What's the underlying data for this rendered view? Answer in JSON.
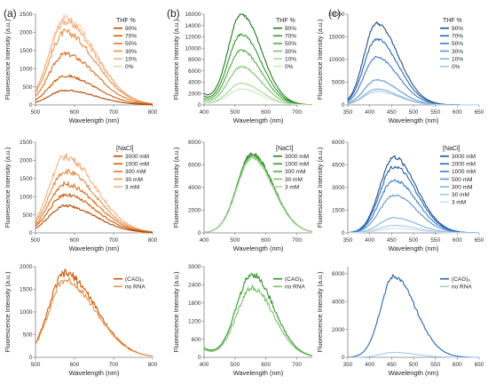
{
  "panel_labels": [
    "(a)",
    "(b)",
    "(c)"
  ],
  "colors": {
    "orange": [
      "#b34700",
      "#cc5a0a",
      "#de7428",
      "#ea934f",
      "#f2b283",
      "#f7cfb2"
    ],
    "green": [
      "#1e7a1e",
      "#33942e",
      "#53ab45",
      "#7ac06a",
      "#a5d697",
      "#cbe8c0"
    ],
    "blue": [
      "#1f4e8c",
      "#2a65ab",
      "#3a7bc4",
      "#5a95d2",
      "#82b1df",
      "#aac9e9",
      "#cddff2"
    ],
    "axis": "#7f7f7f",
    "text": "#222222"
  },
  "chart_data": [
    {
      "id": "a1",
      "type": "line",
      "col": 0,
      "row": 0,
      "xlabel": "Wavelength (nm)",
      "ylabel": "Fluorescence Intensity (a.u.)",
      "xlim": [
        500,
        800
      ],
      "ylim": [
        0,
        2500
      ],
      "xticks": [
        500,
        600,
        700,
        800
      ],
      "yticks": [
        0,
        500,
        1000,
        1500,
        2000,
        2500
      ],
      "legend_title": "THF %",
      "palette": "orange",
      "peak": 575,
      "sl": 40,
      "sr": 78,
      "noise": 0.05,
      "series": [
        {
          "name": "90%",
          "peak_value": 400
        },
        {
          "name": "70%",
          "peak_value": 800
        },
        {
          "name": "50%",
          "peak_value": 1400
        },
        {
          "name": "30%",
          "peak_value": 2000
        },
        {
          "name": "10%",
          "peak_value": 2300
        },
        {
          "name": "0%",
          "peak_value": 2400
        }
      ]
    },
    {
      "id": "b1",
      "type": "line",
      "col": 1,
      "row": 0,
      "xlabel": "Wavelength (nm)",
      "ylabel": "Fluorescence Intensity (a.u.)",
      "xlim": [
        400,
        750
      ],
      "ylim": [
        0,
        16000
      ],
      "xticks": [
        400,
        500,
        600,
        700
      ],
      "yticks": [
        0,
        2000,
        4000,
        6000,
        8000,
        10000,
        12000,
        14000,
        16000
      ],
      "legend_title": "THF %",
      "palette": "green",
      "peak": 520,
      "sl": 42,
      "sr": 65,
      "noise": 0.02,
      "uv": 1700,
      "series": [
        {
          "name": "90%",
          "peak_value": 16000
        },
        {
          "name": "70%",
          "peak_value": 12400
        },
        {
          "name": "50%",
          "peak_value": 9600
        },
        {
          "name": "30%",
          "peak_value": 6700
        },
        {
          "name": "10%",
          "peak_value": 3800
        },
        {
          "name": "0%",
          "peak_value": 2800
        }
      ]
    },
    {
      "id": "c1",
      "type": "line",
      "col": 2,
      "row": 0,
      "xlabel": "Wavelength (nm)",
      "ylabel": "Fluorescence Intensity (a.u.)",
      "xlim": [
        350,
        650
      ],
      "ylim": [
        0,
        20000
      ],
      "xticks": [
        350,
        400,
        450,
        500,
        550,
        600,
        650
      ],
      "yticks": [
        0,
        5000,
        10000,
        15000,
        20000
      ],
      "legend_title": "THF %",
      "palette": "blue",
      "peak": 415,
      "sl": 28,
      "sr": 50,
      "noise": 0.02,
      "series": [
        {
          "name": "90%",
          "peak_value": 18000
        },
        {
          "name": "70%",
          "peak_value": 14500
        },
        {
          "name": "50%",
          "peak_value": 10500
        },
        {
          "name": "30%",
          "peak_value": 5500
        },
        {
          "name": "10%",
          "peak_value": 3500
        },
        {
          "name": "0%",
          "peak_value": 3000
        }
      ]
    },
    {
      "id": "a2",
      "type": "line",
      "col": 0,
      "row": 1,
      "xlabel": "Wavelength (nm)",
      "ylabel": "Fluorescence Intensity (a.u.)",
      "xlim": [
        500,
        800
      ],
      "ylim": [
        0,
        2500
      ],
      "xticks": [
        500,
        600,
        700,
        800
      ],
      "yticks": [
        0,
        500,
        1000,
        1500,
        2000,
        2500
      ],
      "legend_title": "[NaCl]",
      "palette": "orange",
      "peak": 575,
      "sl": 40,
      "sr": 78,
      "noise": 0.05,
      "series": [
        {
          "name": "3000 mM",
          "peak_value": 750
        },
        {
          "name": "1000 mM",
          "peak_value": 1050
        },
        {
          "name": "300 mM",
          "peak_value": 1350
        },
        {
          "name": "30 mM",
          "peak_value": 1700
        },
        {
          "name": "3 mM",
          "peak_value": 2100
        }
      ]
    },
    {
      "id": "b2",
      "type": "line",
      "col": 1,
      "row": 1,
      "xlabel": "Wavelength (nm)",
      "ylabel": "Fluorescence Intensity (a.u.)",
      "xlim": [
        400,
        750
      ],
      "ylim": [
        0,
        8000
      ],
      "xticks": [
        400,
        500,
        600,
        700
      ],
      "yticks": [
        0,
        2000,
        4000,
        6000,
        8000
      ],
      "legend_title": "[NaCl]",
      "palette": "green",
      "peak": 555,
      "sl": 48,
      "sr": 68,
      "noise": 0.02,
      "series": [
        {
          "name": "3000 mM",
          "peak_value": 7000
        },
        {
          "name": "1000 mM",
          "peak_value": 6900
        },
        {
          "name": "300 mM",
          "peak_value": 6800
        },
        {
          "name": "30 mM",
          "peak_value": 6700
        },
        {
          "name": "3 mM",
          "peak_value": 6600
        }
      ]
    },
    {
      "id": "c2",
      "type": "line",
      "col": 2,
      "row": 1,
      "xlabel": "Wavelength (nm)",
      "ylabel": "Fluorescence Intensity (a.u.)",
      "xlim": [
        350,
        650
      ],
      "ylim": [
        0,
        6000
      ],
      "xticks": [
        350,
        400,
        450,
        500,
        550,
        600,
        650
      ],
      "yticks": [
        0,
        1500,
        3000,
        4500,
        6000
      ],
      "legend_title": "[NaCl]",
      "palette": "blue",
      "peak": 455,
      "sl": 32,
      "sr": 52,
      "noise": 0.03,
      "series": [
        {
          "name": "3000 mM",
          "peak_value": 5000
        },
        {
          "name": "2000 mM",
          "peak_value": 4400
        },
        {
          "name": "1000 mM",
          "peak_value": 3500
        },
        {
          "name": "500 mM",
          "peak_value": 2500
        },
        {
          "name": "300 mM",
          "peak_value": 1000
        },
        {
          "name": "30 mM",
          "peak_value": 500
        },
        {
          "name": "3 mM",
          "peak_value": 300
        }
      ]
    },
    {
      "id": "a3",
      "type": "line",
      "col": 0,
      "row": 2,
      "xlabel": "Wavelength (nm)",
      "ylabel": "Fluorescence Intensity (a.u.)",
      "xlim": [
        500,
        800
      ],
      "ylim": [
        0,
        2000
      ],
      "xticks": [
        500,
        600,
        700,
        800
      ],
      "yticks": [
        0,
        500,
        1000,
        1500,
        2000
      ],
      "legend_title": "",
      "palette": "orange",
      "peak": 575,
      "sl": 40,
      "sr": 78,
      "noise": 0.05,
      "series": [
        {
          "name": "(CAG)₆",
          "color_index": 1,
          "peak_value": 1850
        },
        {
          "name": "no RNA",
          "color_index": 3,
          "peak_value": 1700
        }
      ]
    },
    {
      "id": "b3",
      "type": "line",
      "col": 1,
      "row": 2,
      "xlabel": "Wavelength (nm)",
      "ylabel": "Fluorescence Intensity (a.u.)",
      "xlim": [
        400,
        750
      ],
      "ylim": [
        0,
        3000
      ],
      "xticks": [
        400,
        500,
        600,
        700
      ],
      "yticks": [
        0,
        600,
        1200,
        1800,
        2400,
        3000
      ],
      "legend_title": "",
      "palette": "green",
      "peak": 555,
      "sl": 50,
      "sr": 70,
      "noise": 0.04,
      "uv": 300,
      "series": [
        {
          "name": "(CAG)₆",
          "color_index": 1,
          "peak_value": 2750
        },
        {
          "name": "no RNA",
          "color_index": 3,
          "peak_value": 2300
        }
      ]
    },
    {
      "id": "c3",
      "type": "line",
      "col": 2,
      "row": 2,
      "xlabel": "Wavelength (nm)",
      "ylabel": "Fluorescence Intensity (a.u.)",
      "xlim": [
        350,
        650
      ],
      "ylim": [
        0,
        6500
      ],
      "xticks": [
        350,
        400,
        450,
        500,
        550,
        600,
        650
      ],
      "yticks": [
        0,
        2000,
        4000,
        6000
      ],
      "legend_title": "",
      "palette": "blue",
      "peak": 455,
      "sl": 30,
      "sr": 50,
      "noise": 0.03,
      "series": [
        {
          "name": "(CAG)₆",
          "color_index": 1,
          "peak_value": 5800
        },
        {
          "name": "no RNA",
          "color_index": 5,
          "peak_value": 350
        }
      ]
    }
  ]
}
